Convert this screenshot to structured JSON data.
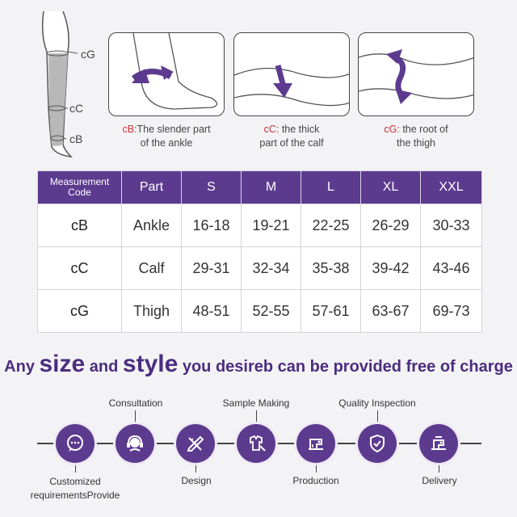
{
  "leg_labels": {
    "top": "cG",
    "mid": "cC",
    "bottom": "cB"
  },
  "panels": [
    {
      "icon": "ankle-measure-illustration",
      "code": "cB:",
      "text1": "The slender part",
      "text2": "of the ankle"
    },
    {
      "icon": "calf-measure-illustration",
      "code": "cC:",
      "text1": " the thick",
      "text2": "part of the calf"
    },
    {
      "icon": "thigh-measure-illustration",
      "code": "cG:",
      "text1": " the root of",
      "text2": "the thigh"
    }
  ],
  "table": {
    "headers": [
      "Measurement Code",
      "Part",
      "S",
      "M",
      "L",
      "XL",
      "XXL"
    ],
    "rows": [
      [
        "cB",
        "Ankle",
        "16-18",
        "19-21",
        "22-25",
        "26-29",
        "30-33"
      ],
      [
        "cC",
        "Calf",
        "29-31",
        "32-34",
        "35-38",
        "39-42",
        "43-46"
      ],
      [
        "cG",
        "Thigh",
        "48-51",
        "52-55",
        "57-61",
        "63-67",
        "69-73"
      ]
    ]
  },
  "slogan": {
    "p1": "Any ",
    "p2": "size",
    "p3": " and ",
    "p4": "style",
    "p5": " you desireb can be provided free of charge"
  },
  "process": {
    "steps": [
      {
        "label": "Customized requirementsProvide",
        "line1": "Customized",
        "line2": "requirementsProvide",
        "icon": "chat-bubble-icon"
      },
      {
        "label": "Consultation",
        "icon": "headset-icon"
      },
      {
        "label": "Design",
        "icon": "pencil-ruler-icon"
      },
      {
        "label": "Sample Making",
        "icon": "sewing-icon"
      },
      {
        "label": "Production",
        "icon": "sewing-machine-icon"
      },
      {
        "label": "Quality Inspection",
        "icon": "shield-check-icon"
      },
      {
        "label": "Delivery",
        "icon": "delivery-machine-icon"
      }
    ]
  },
  "colors": {
    "brand": "#5c3b8f",
    "code_red": "#c8313b",
    "background": "#f3f3f5"
  }
}
